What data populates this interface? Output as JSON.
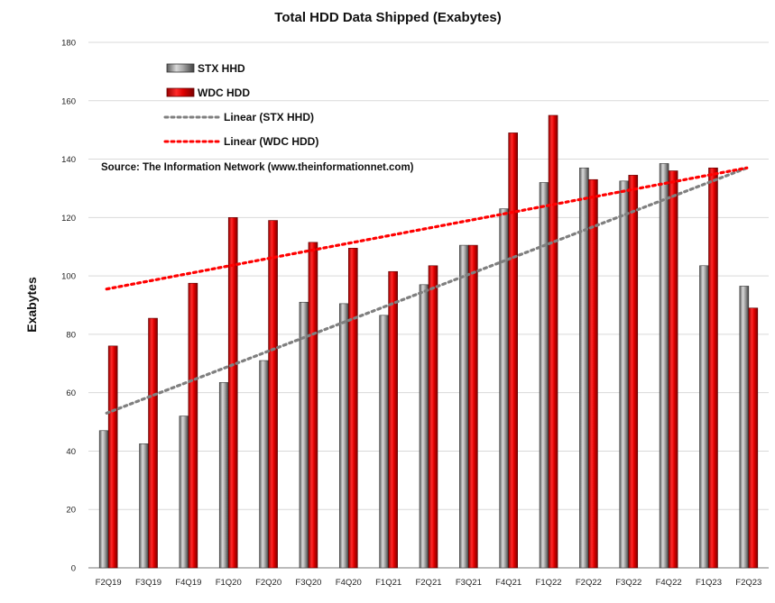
{
  "chart_data": {
    "type": "bar",
    "title": "Total HDD Data Shipped (Exabytes)",
    "ylabel": "Exabytes",
    "xlabel": "",
    "ylim": [
      0,
      180
    ],
    "yticks": [
      0,
      20,
      40,
      60,
      80,
      100,
      120,
      140,
      160,
      180
    ],
    "grid": true,
    "legend_position": "top-left",
    "source_note": "Source: The Information Network (www.theinformationnet.com)",
    "categories": [
      "F2Q19",
      "F3Q19",
      "F4Q19",
      "F1Q20",
      "F2Q20",
      "F3Q20",
      "F4Q20",
      "F1Q21",
      "F2Q21",
      "F3Q21",
      "F4Q21",
      "F1Q22",
      "F2Q22",
      "F3Q22",
      "F4Q22",
      "F1Q23",
      "F2Q23"
    ],
    "series": [
      {
        "name": "STX HHD",
        "color": "#8c8c8c",
        "values": [
          47,
          42.5,
          52,
          63.5,
          71,
          91,
          90.5,
          86.5,
          97,
          110.5,
          123,
          132,
          137,
          132.5,
          138.5,
          103.5,
          96.5
        ]
      },
      {
        "name": "WDC HDD",
        "color": "#e30000",
        "values": [
          76,
          85.5,
          97.5,
          120,
          119,
          111.5,
          109.5,
          101.5,
          103.5,
          110.5,
          149,
          155,
          133,
          134.5,
          136,
          137,
          89
        ]
      }
    ],
    "trendlines": [
      {
        "name": "Linear (STX HHD)",
        "color": "#7f7f7f",
        "start": 53,
        "end": 137
      },
      {
        "name": "Linear (WDC HDD)",
        "color": "#ff0000",
        "start": 95.5,
        "end": 137
      }
    ]
  }
}
